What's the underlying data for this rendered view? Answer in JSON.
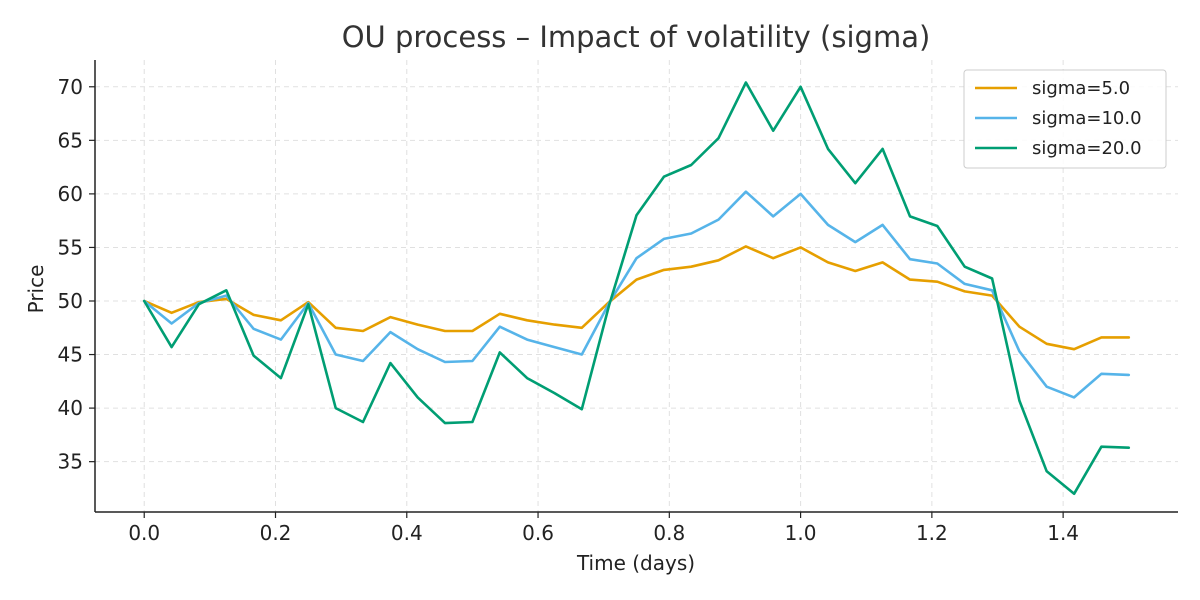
{
  "chart_data": {
    "type": "line",
    "title": "OU process – Impact of volatility (sigma)",
    "xlabel": "Time (days)",
    "ylabel": "Price",
    "xlim": [
      -0.075,
      1.575
    ],
    "ylim": [
      30.3,
      72.5
    ],
    "xticks": [
      0.0,
      0.2,
      0.4,
      0.6,
      0.8,
      1.0,
      1.2,
      1.4
    ],
    "xtick_labels": [
      "0.0",
      "0.2",
      "0.4",
      "0.6",
      "0.8",
      "1.0",
      "1.2",
      "1.4"
    ],
    "yticks": [
      35,
      40,
      45,
      50,
      55,
      60,
      65,
      70
    ],
    "ytick_labels": [
      "35",
      "40",
      "45",
      "50",
      "55",
      "60",
      "65",
      "70"
    ],
    "grid": true,
    "legend_position": "top-right",
    "x": [
      0.0,
      0.0417,
      0.0833,
      0.125,
      0.1667,
      0.2083,
      0.25,
      0.2917,
      0.3333,
      0.375,
      0.4167,
      0.4583,
      0.5,
      0.5417,
      0.5833,
      0.625,
      0.6667,
      0.7083,
      0.75,
      0.7917,
      0.8333,
      0.875,
      0.9167,
      0.9583,
      1.0,
      1.0417,
      1.0833,
      1.125,
      1.1667,
      1.2083,
      1.25,
      1.2917,
      1.3333,
      1.375,
      1.4167,
      1.4583,
      1.5
    ],
    "series": [
      {
        "name": "sigma=5.0",
        "color": "#E69F00",
        "values": [
          50.0,
          48.9,
          49.9,
          50.2,
          48.7,
          48.2,
          49.9,
          47.5,
          47.2,
          48.5,
          47.8,
          47.2,
          47.2,
          48.8,
          48.2,
          47.8,
          47.5,
          49.9,
          52.0,
          52.9,
          53.2,
          53.8,
          55.1,
          54.0,
          55.0,
          53.6,
          52.8,
          53.6,
          52.0,
          51.8,
          50.9,
          50.5,
          47.6,
          46.0,
          45.5,
          46.6,
          46.6
        ]
      },
      {
        "name": "sigma=10.0",
        "color": "#56B4E9",
        "values": [
          50.0,
          47.9,
          49.8,
          50.5,
          47.4,
          46.4,
          49.8,
          45.0,
          44.4,
          47.1,
          45.5,
          44.3,
          44.4,
          47.6,
          46.4,
          45.7,
          45.0,
          49.8,
          54.0,
          55.8,
          56.3,
          57.6,
          60.2,
          57.9,
          60.0,
          57.1,
          55.5,
          57.1,
          53.9,
          53.5,
          51.6,
          51.0,
          45.3,
          42.0,
          41.0,
          43.2,
          43.1
        ]
      },
      {
        "name": "sigma=20.0",
        "color": "#009E73",
        "values": [
          50.0,
          45.7,
          49.7,
          51.0,
          44.9,
          42.8,
          49.7,
          40.0,
          38.7,
          44.2,
          41.0,
          38.6,
          38.7,
          45.2,
          42.8,
          41.4,
          39.9,
          49.6,
          58.0,
          61.6,
          62.7,
          65.2,
          70.4,
          65.9,
          70.0,
          64.2,
          61.0,
          64.2,
          57.9,
          57.0,
          53.2,
          52.1,
          40.7,
          34.1,
          32.0,
          36.4,
          36.3
        ]
      }
    ]
  }
}
